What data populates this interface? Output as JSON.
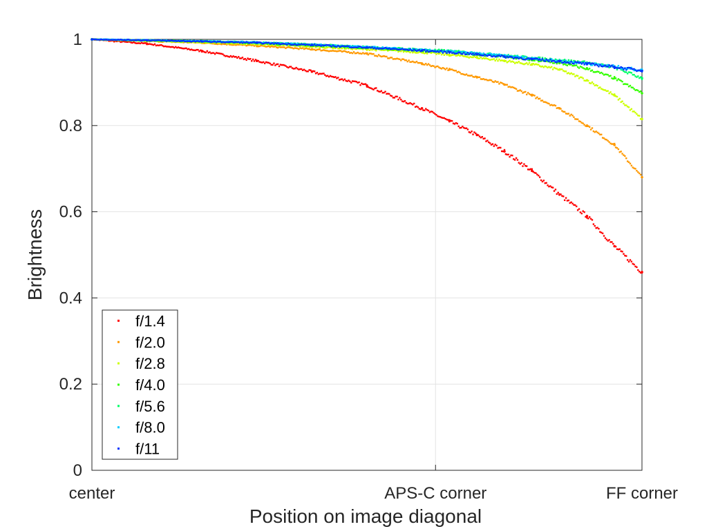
{
  "chart_data": {
    "type": "scatter",
    "title": "",
    "xlabel": "Position on image diagonal",
    "ylabel": "Brightness",
    "xlim": [
      0,
      1
    ],
    "ylim": [
      0,
      1
    ],
    "grid": true,
    "legend_position": "bottom-left",
    "x_ticks": [
      {
        "value": 0,
        "label": "center"
      },
      {
        "value": 0.6247,
        "label": "APS-C corner"
      },
      {
        "value": 1,
        "label": "FF corner"
      }
    ],
    "y_ticks": [
      {
        "value": 0,
        "label": "0"
      },
      {
        "value": 0.2,
        "label": "0.2"
      },
      {
        "value": 0.4,
        "label": "0.4"
      },
      {
        "value": 0.6,
        "label": "0.6"
      },
      {
        "value": 0.8,
        "label": "0.8"
      },
      {
        "value": 1,
        "label": "1"
      }
    ],
    "x": [
      0,
      0.1,
      0.2,
      0.3,
      0.4,
      0.5,
      0.6,
      0.65,
      0.7,
      0.75,
      0.8,
      0.85,
      0.9,
      0.95,
      1.0
    ],
    "series": [
      {
        "name": "f/1.4",
        "color": "#ff0000",
        "values": [
          1.0,
          0.99,
          0.973,
          0.95,
          0.925,
          0.893,
          0.84,
          0.81,
          0.778,
          0.74,
          0.695,
          0.64,
          0.59,
          0.52,
          0.46
        ]
      },
      {
        "name": "f/2.0",
        "color": "#ff9900",
        "values": [
          1.0,
          0.996,
          0.992,
          0.985,
          0.977,
          0.967,
          0.944,
          0.93,
          0.912,
          0.895,
          0.87,
          0.84,
          0.8,
          0.755,
          0.68
        ]
      },
      {
        "name": "f/2.8",
        "color": "#ccff00",
        "values": [
          1.0,
          0.997,
          0.993,
          0.989,
          0.983,
          0.977,
          0.97,
          0.964,
          0.958,
          0.95,
          0.942,
          0.93,
          0.905,
          0.87,
          0.815
        ]
      },
      {
        "name": "f/4.0",
        "color": "#33ff00",
        "values": [
          1.0,
          0.997,
          0.995,
          0.991,
          0.986,
          0.98,
          0.974,
          0.97,
          0.965,
          0.96,
          0.952,
          0.945,
          0.932,
          0.91,
          0.875
        ]
      },
      {
        "name": "f/5.6",
        "color": "#00ff66",
        "values": [
          1.0,
          0.998,
          0.996,
          0.993,
          0.988,
          0.982,
          0.976,
          0.973,
          0.968,
          0.963,
          0.957,
          0.952,
          0.946,
          0.935,
          0.91
        ]
      },
      {
        "name": "f/8.0",
        "color": "#00ccff",
        "values": [
          1.0,
          0.998,
          0.996,
          0.993,
          0.988,
          0.982,
          0.975,
          0.972,
          0.967,
          0.962,
          0.956,
          0.95,
          0.944,
          0.937,
          0.928
        ]
      },
      {
        "name": "f/11",
        "color": "#0033ff",
        "values": [
          1.0,
          0.998,
          0.995,
          0.992,
          0.987,
          0.981,
          0.974,
          0.97,
          0.965,
          0.96,
          0.954,
          0.949,
          0.943,
          0.936,
          0.927
        ]
      }
    ]
  }
}
